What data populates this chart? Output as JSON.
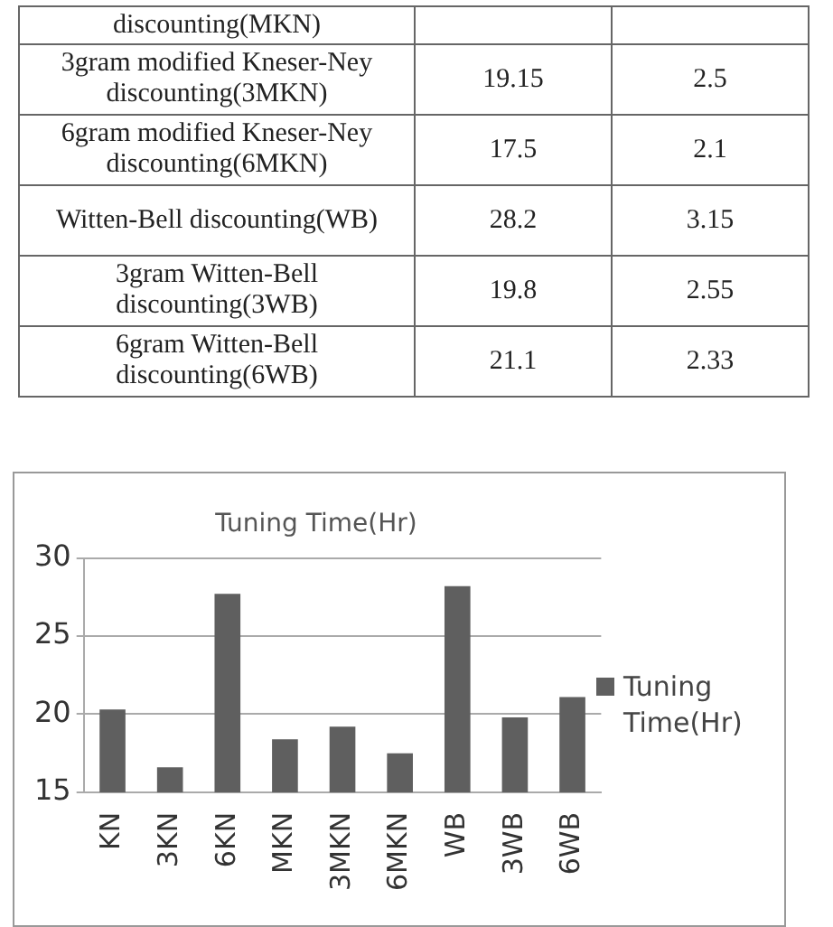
{
  "chart_data": [
    {
      "type": "other",
      "categories": [
        "discounting(MKN)",
        "3gram modified Kneser-Ney discounting(3MKN)",
        "6gram modified Kneser-Ney discounting(6MKN)",
        "Witten-Bell discounting(WB)",
        "3gram Witten-Bell discounting(3WB)",
        "6gram Witten-Bell discounting(6WB)"
      ],
      "series": [
        {
          "values": [
            null,
            19.15,
            17.5,
            28.2,
            19.8,
            21.1
          ]
        },
        {
          "values": [
            null,
            2.5,
            2.1,
            3.15,
            2.55,
            2.33
          ]
        }
      ],
      "data_labels": true
    },
    {
      "type": "bar",
      "title": "Tuning Time(Hr)",
      "categories": [
        "KN",
        "3KN",
        "6KN",
        "MKN",
        "3MKN",
        "6MKN",
        "WB",
        "3WB",
        "6WB"
      ],
      "series": [
        {
          "name": "Tuning Time(Hr)",
          "color": "#5f5f5f",
          "values": [
            20.3,
            16.6,
            27.7,
            18.4,
            19.2,
            17.5,
            28.2,
            19.8,
            21.1
          ]
        }
      ],
      "ylim": [
        15,
        30
      ],
      "yticks": [
        15,
        20,
        25,
        30
      ],
      "grid": "y",
      "legend": "right"
    }
  ]
}
